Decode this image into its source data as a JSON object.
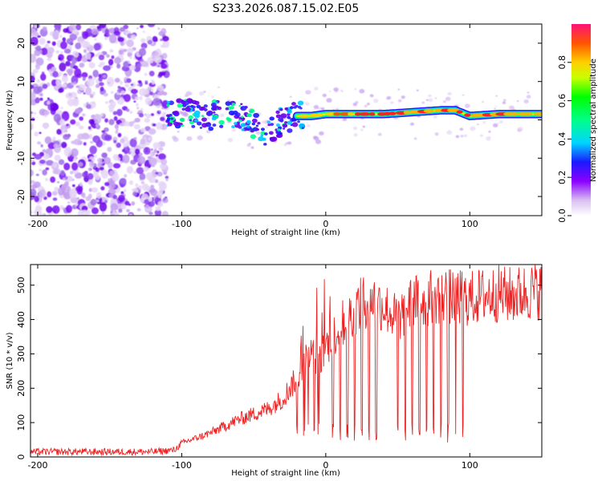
{
  "figure": {
    "title": "S233.2026.087.15.02.E05"
  },
  "chart_data": [
    {
      "type": "heatmap",
      "title": "S233.2026.087.15.02.E05",
      "xlabel": "Height of straight line (km)",
      "ylabel": "Frequency (Hz)",
      "xlim": [
        -205,
        150
      ],
      "ylim": [
        -25,
        25
      ],
      "xticks": [
        -200,
        -100,
        0,
        100
      ],
      "xtick_labels": [
        "-200",
        "-100",
        "0",
        "100"
      ],
      "yticks": [
        -20,
        -10,
        0,
        10,
        20
      ],
      "ytick_labels": [
        "-20",
        "-10",
        "0",
        "10",
        "20"
      ],
      "ridge": {
        "description_x": [
          -110,
          -100,
          -90,
          -80,
          -70,
          -60,
          -50,
          -40,
          -30,
          -20,
          -10,
          0,
          20,
          40,
          60,
          80,
          90,
          100,
          120,
          150
        ],
        "frequency_hz": [
          1.5,
          2,
          1.5,
          1,
          2,
          1,
          -1,
          -4,
          0,
          1,
          1,
          1.5,
          1.5,
          1.5,
          2,
          2.5,
          2.5,
          1,
          1.5,
          1.5
        ]
      },
      "colorbar": {
        "label": "Normalized spectral amplitude",
        "range": [
          0,
          1
        ],
        "ticks": [
          0.0,
          0.2,
          0.4,
          0.6,
          0.8
        ],
        "tick_labels": [
          "0.0",
          "0.2",
          "0.4",
          "0.6",
          "0.8"
        ]
      }
    },
    {
      "type": "line",
      "xlabel": "Height of straight line (km)",
      "ylabel": "SNR (10 * v/v)",
      "xlim": [
        -205,
        150
      ],
      "ylim": [
        0,
        560
      ],
      "xticks": [
        -200,
        -100,
        0,
        100
      ],
      "xtick_labels": [
        "-200",
        "-100",
        "0",
        "100"
      ],
      "yticks": [
        0,
        100,
        200,
        300,
        400,
        500
      ],
      "ytick_labels": [
        "0",
        "100",
        "200",
        "300",
        "400",
        "500"
      ],
      "color": "#ee2222",
      "series": [
        {
          "name": "SNR",
          "x": [
            -205,
            -180,
            -160,
            -140,
            -120,
            -105,
            -100,
            -90,
            -80,
            -70,
            -60,
            -50,
            -40,
            -30,
            -20,
            -10,
            -5,
            0,
            5,
            10,
            20,
            30,
            40,
            50,
            60,
            70,
            80,
            90,
            100,
            110,
            120,
            130,
            140,
            150
          ],
          "y": [
            15,
            15,
            15,
            15,
            15,
            20,
            40,
            55,
            70,
            90,
            110,
            125,
            140,
            170,
            230,
            300,
            280,
            320,
            350,
            380,
            430,
            460,
            440,
            400,
            450,
            460,
            470,
            465,
            460,
            470,
            475,
            470,
            480,
            485
          ]
        }
      ],
      "dropouts_x": [
        -20,
        -15,
        -12,
        -8,
        -5,
        5,
        10,
        15,
        20,
        25,
        30,
        35,
        50,
        55,
        60,
        65,
        70,
        75,
        80,
        85,
        90,
        95
      ]
    }
  ]
}
